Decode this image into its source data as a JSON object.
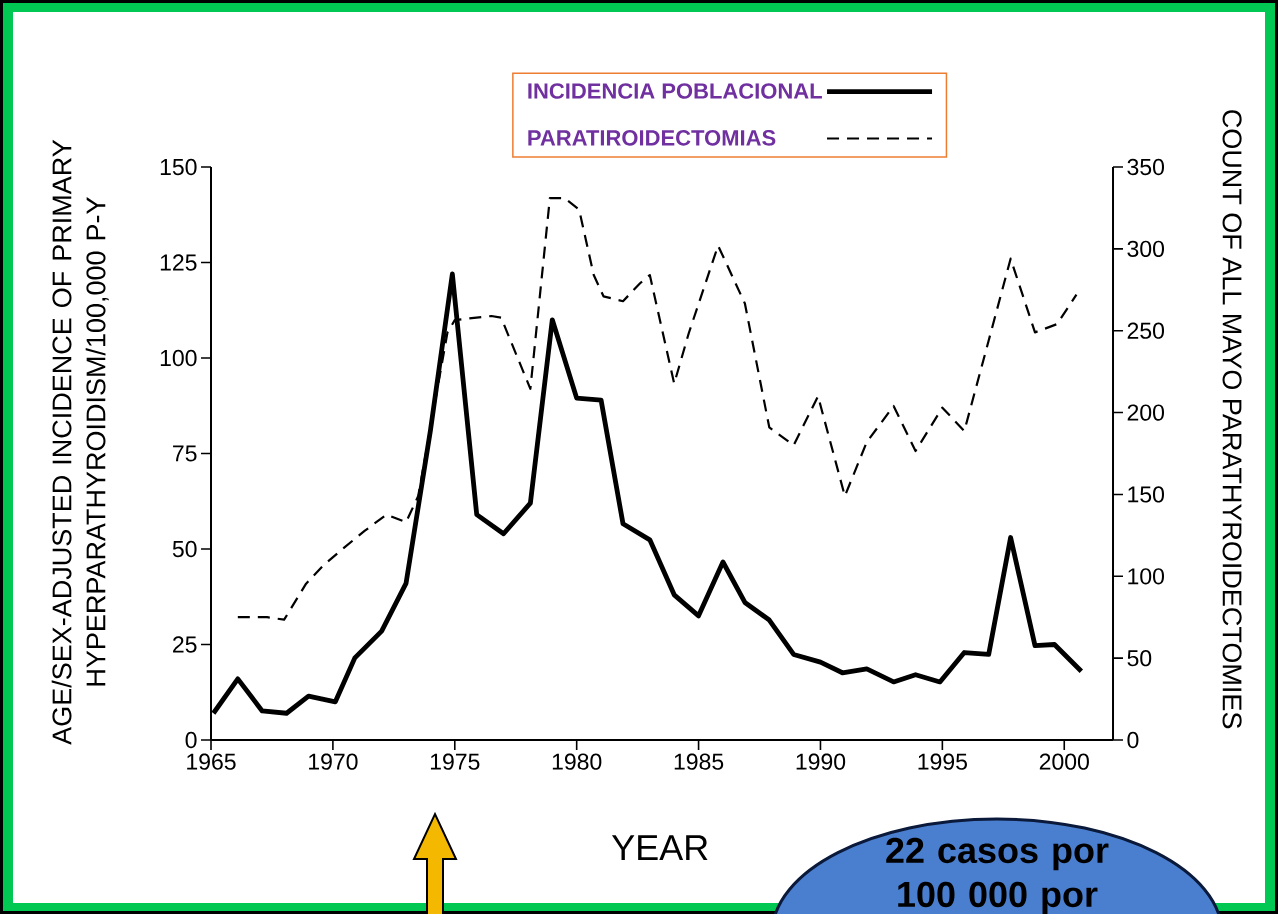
{
  "chart_data": {
    "type": "line",
    "xlabel": "YEAR",
    "ylabel": "AGE/SEX-ADJUSTED INCIDENCE OF PRIMARY HYPERPARATHYROIDISM/100,000 P-Y",
    "y2label": "COUNT OF ALL MAYO PARATHYROIDECTOMIES",
    "xlim": [
      1965,
      2002
    ],
    "xticks": [
      1965,
      1970,
      1975,
      1980,
      1985,
      1990,
      1995,
      2000
    ],
    "ylim": [
      0,
      150
    ],
    "yticks": [
      0,
      25,
      50,
      75,
      100,
      125,
      150
    ],
    "y2lim": [
      0,
      350
    ],
    "y2ticks": [
      0,
      50,
      100,
      150,
      200,
      250,
      300,
      350
    ],
    "legend": "top",
    "annotations": [
      "22 casos por 100 000 por"
    ],
    "series": [
      {
        "name": "INCIDENCIA POBLACIONAL",
        "color": "#000000",
        "line_style": "solid",
        "x": [
          1965.1,
          1966.1,
          1967.1,
          1968.1,
          1969.0,
          1970.1,
          1970.9,
          1972.0,
          1973.0,
          1974.0,
          1974.9,
          1975.9,
          1977.0,
          1978.1,
          1979.0,
          1980.0,
          1981.0,
          1981.9,
          1983.0,
          1984.0,
          1985.0,
          1986.0,
          1986.9,
          1987.9,
          1988.9,
          1990.0,
          1990.9,
          1991.9,
          1993.0,
          1993.9,
          1994.9,
          1995.9,
          1996.9,
          1997.8,
          1998.8,
          1999.6,
          2000.7
        ],
        "values": [
          7,
          16,
          7.6,
          7,
          11.5,
          10,
          21.5,
          28.5,
          41,
          81,
          122,
          59,
          54,
          62,
          110,
          89.5,
          89,
          56.6,
          52.4,
          38,
          32.5,
          46.6,
          36,
          31.4,
          22.4,
          20.4,
          17.6,
          18.6,
          15.2,
          17.1,
          15.2,
          22.9,
          22.4,
          53,
          24.7,
          25,
          18
        ]
      },
      {
        "name": "PARATIROIDECTOMIAS",
        "color": "#000000",
        "line_style": "dashed",
        "axis": "y2",
        "x": [
          1966.1,
          1967.3,
          1968.0,
          1968.9,
          1969.6,
          1970.5,
          1971.3,
          1972.2,
          1973.0,
          1973.5,
          1974.7,
          1975.0,
          1976.5,
          1976.9,
          1978.1,
          1978.9,
          1979.5,
          1980.1,
          1980.7,
          1981.1,
          1981.9,
          1982.6,
          1983.0,
          1984.0,
          1984.6,
          1985.8,
          1986.9,
          1987.9,
          1988.9,
          1989.9,
          1991.0,
          1991.9,
          1993.0,
          1993.9,
          1995.0,
          1995.9,
          1996.9,
          1997.8,
          1998.8,
          1999.7,
          2000.5
        ],
        "values": [
          75,
          75,
          73.5,
          95.5,
          106.6,
          118,
          127.7,
          137.7,
          133,
          149,
          249,
          256.5,
          259,
          258,
          214.5,
          331,
          331,
          324,
          284,
          271,
          268,
          279,
          284,
          217.7,
          248.6,
          302,
          266.6,
          191,
          180,
          210,
          149,
          182,
          204,
          176.5,
          203,
          188.7,
          244,
          294,
          249,
          254,
          272
        ]
      }
    ]
  }
}
